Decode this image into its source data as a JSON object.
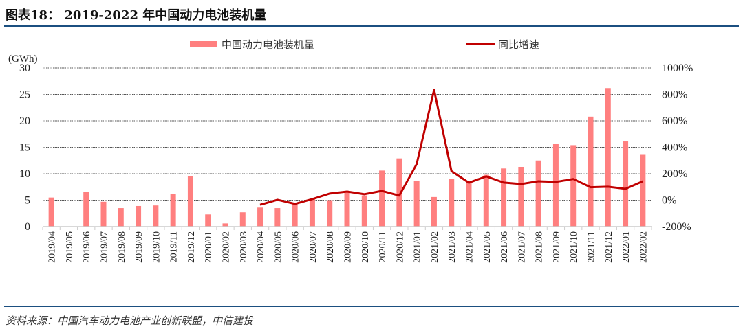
{
  "header": {
    "title": "图表18： 2019-2022 年中国动力电池装机量"
  },
  "footer": {
    "source": "资料来源：中国汽车动力电池产业创新联盟，中信建投"
  },
  "colors": {
    "bar": "#ff7f7f",
    "line": "#c00000",
    "rule": "#1b4f80"
  },
  "chart_data": {
    "type": "bar+line",
    "title": "2019-2022 年中国动力电池装机量",
    "left_axis_unit": "(GWh)",
    "categories": [
      "2019/04",
      "2019/05",
      "2019/06",
      "2019/07",
      "2019/08",
      "2019/09",
      "2019/10",
      "2019/11",
      "2019/12",
      "2020/01",
      "2020/02",
      "2020/03",
      "2020/04",
      "2020/05",
      "2020/06",
      "2020/07",
      "2020/08",
      "2020/09",
      "2020/10",
      "2020/11",
      "2020/12",
      "2021/01",
      "2021/02",
      "2021/03",
      "2021/04",
      "2021/05",
      "2021/06",
      "2021/07",
      "2021/08",
      "2021/09",
      "2021/10",
      "2021/11",
      "2021/12",
      "2022/01",
      "2022/02"
    ],
    "series": [
      {
        "name": "中国动力电池装机量",
        "type": "bar",
        "axis": "left",
        "values": [
          5.5,
          null,
          6.6,
          4.7,
          3.5,
          3.9,
          4.0,
          6.2,
          9.6,
          2.3,
          0.6,
          2.7,
          3.6,
          3.5,
          4.3,
          5.2,
          5.0,
          6.6,
          5.9,
          10.6,
          12.9,
          8.6,
          5.6,
          9.0,
          8.4,
          9.8,
          11.0,
          11.3,
          12.5,
          15.7,
          15.4,
          20.8,
          26.2,
          16.1,
          13.7
        ]
      },
      {
        "name": "同比增速",
        "type": "line",
        "axis": "right",
        "values": [
          null,
          null,
          null,
          null,
          null,
          null,
          null,
          null,
          null,
          null,
          null,
          null,
          -35,
          3,
          -28,
          8,
          50,
          65,
          45,
          70,
          35,
          273,
          834,
          220,
          132,
          180,
          133,
          122,
          143,
          138,
          160,
          98,
          102,
          86,
          143
        ]
      }
    ],
    "left_axis": {
      "ylim": [
        0,
        30
      ],
      "ticks": [
        "0",
        "5",
        "10",
        "15",
        "20",
        "25",
        "30"
      ],
      "tick_values": [
        0,
        5,
        10,
        15,
        20,
        25,
        30
      ]
    },
    "right_axis": {
      "ylim": [
        -200,
        1000
      ],
      "ticks": [
        "-200%",
        "0%",
        "200%",
        "400%",
        "600%",
        "800%",
        "1000%"
      ],
      "tick_values": [
        -200,
        0,
        200,
        400,
        600,
        800,
        1000
      ]
    },
    "legend": {
      "position": "top",
      "entries": [
        "中国动力电池装机量",
        "同比增速"
      ]
    },
    "grid": true
  }
}
